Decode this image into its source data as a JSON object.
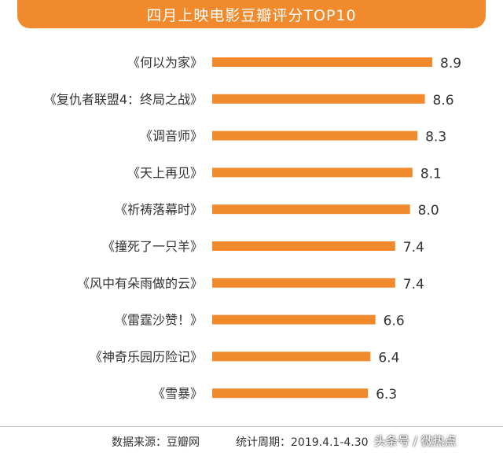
{
  "chart_data": {
    "type": "bar",
    "orientation": "horizontal",
    "title": "四月上映电影豆瓣评分TOP10",
    "categories": [
      "《何以为家》",
      "《复仇者联盟4：终局之战》",
      "《调音师》",
      "《天上再见》",
      "《祈祷落幕时》",
      "《撞死了一只羊》",
      "《风中有朵雨做的云》",
      "《雷霆沙赞！》",
      "《神奇乐园历险记》",
      "《雪暴》"
    ],
    "values": [
      8.9,
      8.6,
      8.3,
      8.1,
      8.0,
      7.4,
      7.4,
      6.6,
      6.4,
      6.3
    ],
    "value_labels": [
      "8.9",
      "8.6",
      "8.3",
      "8.1",
      "8.0",
      "7.4",
      "7.4",
      "6.6",
      "6.4",
      "6.3"
    ],
    "bar_color": "#f08a2c",
    "xlim": [
      0,
      8.9
    ],
    "grid": false,
    "legend": "none"
  },
  "footer": {
    "source": "数据来源：豆瓣网",
    "period": "统计周期：2019.4.1-4.30"
  },
  "watermark": "头条号 / 微热点",
  "colors": {
    "accent": "#f08a2c",
    "title_text": "#ffffff"
  }
}
